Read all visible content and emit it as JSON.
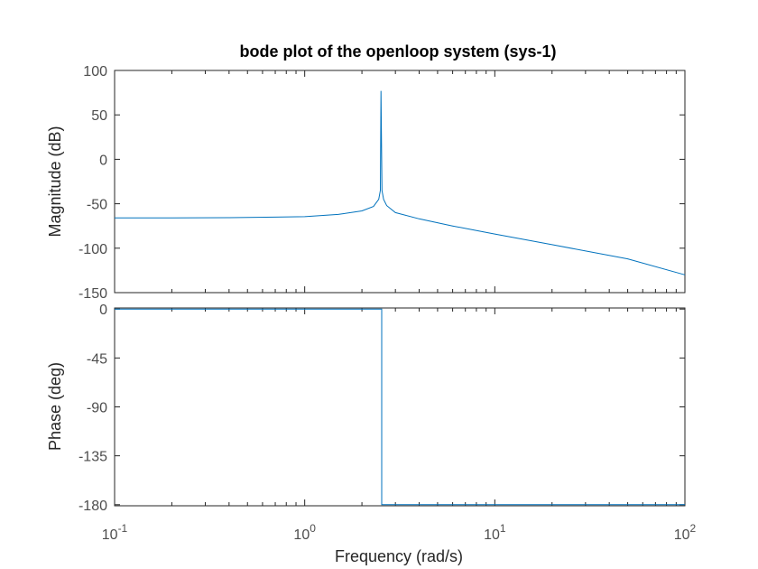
{
  "chart_data": [
    {
      "type": "line",
      "name": "magnitude",
      "title": "bode plot of the openloop system (sys-1)",
      "ylabel": "Magnitude (dB)",
      "xlabel": "",
      "xscale": "log",
      "xlim": [
        0.1,
        100
      ],
      "ylim": [
        -150,
        100
      ],
      "yticks": [
        100,
        50,
        0,
        -50,
        -100,
        -150
      ],
      "ytick_labels": [
        "100",
        "50",
        "0",
        "-50",
        "-100",
        "-150"
      ],
      "grid": false,
      "series": [
        {
          "name": "sys-1",
          "color": "#0072BD",
          "x": [
            0.1,
            0.2,
            0.4,
            0.7,
            1.0,
            1.5,
            2.0,
            2.3,
            2.45,
            2.5,
            2.52,
            2.55,
            2.6,
            2.7,
            3.0,
            4.0,
            6.0,
            10,
            20,
            50,
            100
          ],
          "y": [
            -66,
            -66,
            -65.6,
            -65,
            -64.5,
            -62,
            -58,
            -53,
            -45,
            -35,
            77,
            -35,
            -45,
            -52,
            -60,
            -67,
            -75,
            -84,
            -96,
            -112,
            -130
          ]
        }
      ]
    },
    {
      "type": "line",
      "name": "phase",
      "title": "",
      "ylabel": "Phase (deg)",
      "xlabel": "Frequency  (rad/s)",
      "xscale": "log",
      "xlim": [
        0.1,
        100
      ],
      "ylim": [
        -181,
        1
      ],
      "yticks": [
        0,
        -45,
        -90,
        -135,
        -180
      ],
      "ytick_labels": [
        "0",
        "-45",
        "-90",
        "-135",
        "-180"
      ],
      "xtick_values": [
        0.1,
        1,
        10,
        100
      ],
      "xtick_bases": [
        "10",
        "10",
        "10",
        "10"
      ],
      "xtick_exponents": [
        "-1",
        "0",
        "1",
        "2"
      ],
      "grid": false,
      "series": [
        {
          "name": "sys-1",
          "color": "#0072BD",
          "x": [
            0.1,
            2.54,
            2.54,
            100
          ],
          "y": [
            0,
            0,
            -180,
            -180
          ]
        }
      ]
    }
  ]
}
